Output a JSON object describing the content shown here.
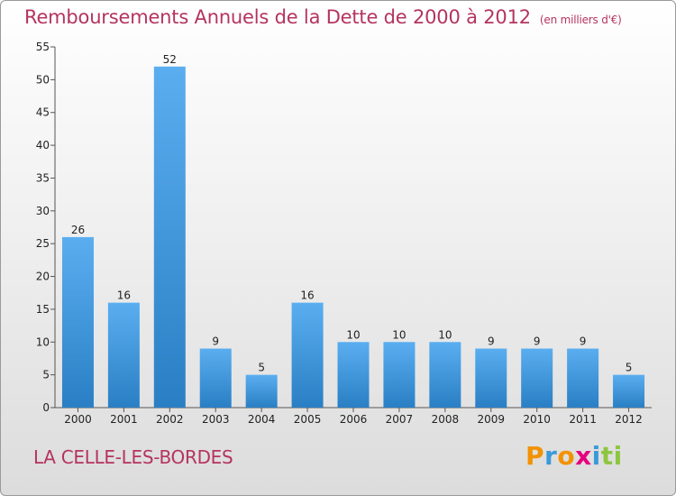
{
  "title": "Remboursements Annuels de la Dette de 2000 à 2012",
  "unit": "(en milliers d'€)",
  "commune": "LA CELLE-LES-BORDES",
  "logo": {
    "text": "Proxiti",
    "letters": [
      "P",
      "r",
      "o",
      "x",
      "i",
      "ti"
    ]
  },
  "colors": {
    "title": "#b5345e",
    "bar_top": "#5aaef0",
    "bar_bottom": "#2a7fc4"
  },
  "chart_data": {
    "type": "bar",
    "title": "Remboursements Annuels de la Dette de 2000 à 2012",
    "xlabel": "",
    "ylabel": "",
    "categories": [
      "2000",
      "2001",
      "2002",
      "2003",
      "2004",
      "2005",
      "2006",
      "2007",
      "2008",
      "2009",
      "2010",
      "2011",
      "2012"
    ],
    "values": [
      26,
      16,
      52,
      9,
      5,
      16,
      10,
      10,
      10,
      9,
      9,
      9,
      5
    ],
    "ylim": [
      0,
      55
    ],
    "yticks": [
      0,
      5,
      10,
      15,
      20,
      25,
      30,
      35,
      40,
      45,
      50,
      55
    ],
    "grid": false,
    "legend": "none"
  }
}
